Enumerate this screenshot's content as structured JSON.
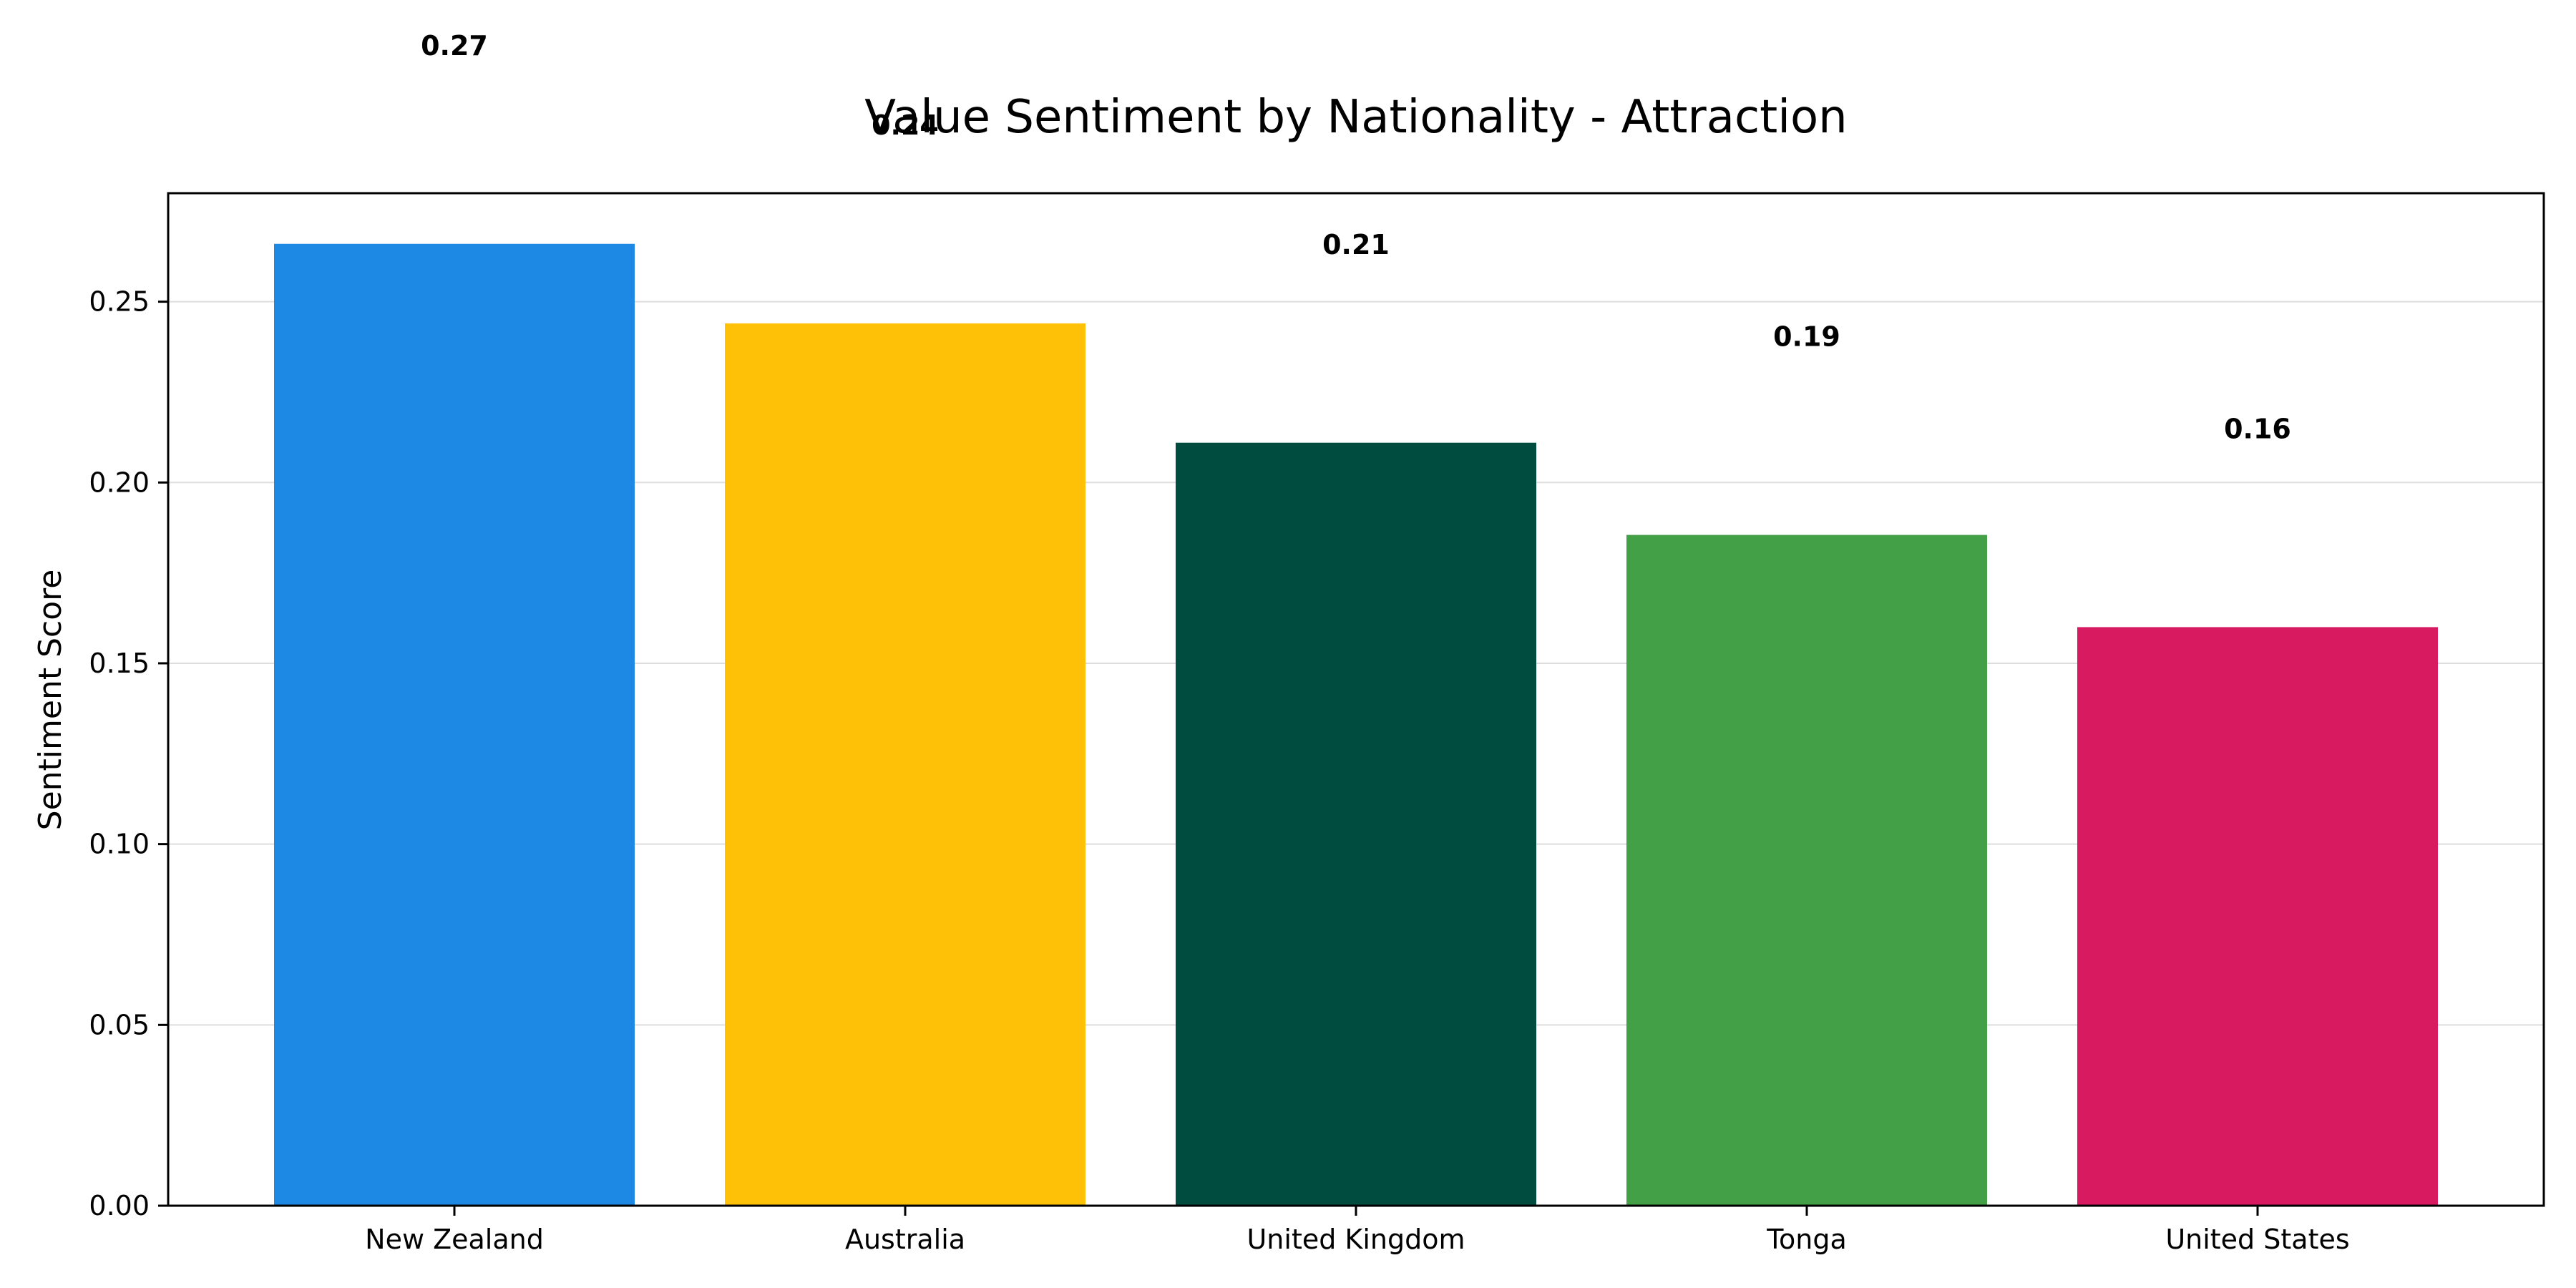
{
  "chart_data": {
    "type": "bar",
    "title": "Value Sentiment by Nationality - Attraction",
    "xlabel": "",
    "ylabel": "Sentiment Score",
    "categories": [
      "New Zealand",
      "Australia",
      "United Kingdom",
      "Tonga",
      "United States"
    ],
    "values": [
      0.266,
      0.244,
      0.211,
      0.1855,
      0.16
    ],
    "value_labels": [
      "0.27",
      "0.24",
      "0.21",
      "0.19",
      "0.16"
    ],
    "colors": [
      "#1E88E5",
      "#FFC107",
      "#004D40",
      "#43A047",
      "#D81B60"
    ],
    "ylim": [
      0,
      0.28
    ],
    "yticks": [
      0.0,
      0.05,
      0.1,
      0.15,
      0.2,
      0.25
    ],
    "ytick_labels": [
      "0.00",
      "0.05",
      "0.10",
      "0.15",
      "0.20",
      "0.25"
    ],
    "grid": "horizontal",
    "legend": "none"
  }
}
